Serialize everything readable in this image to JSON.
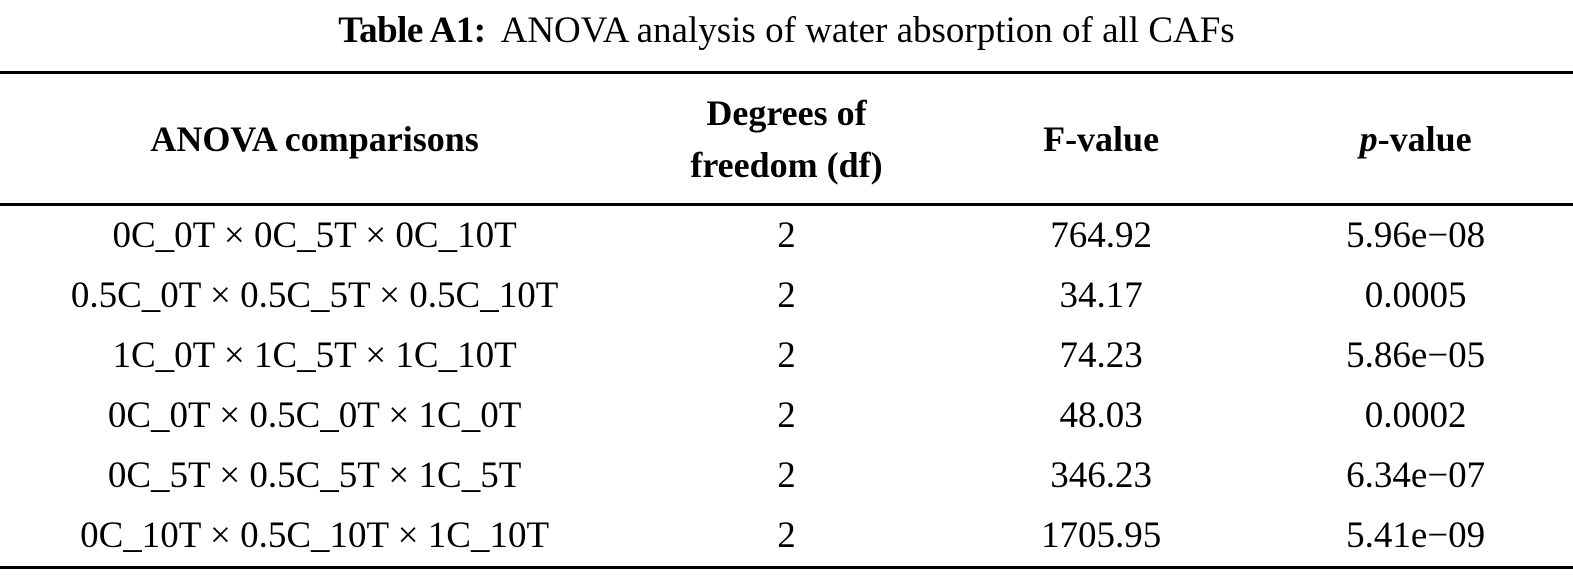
{
  "title": {
    "label": "Table A1:",
    "text": "ANOVA analysis of water absorption of all CAFs"
  },
  "table": {
    "headers": {
      "comparisons": "ANOVA comparisons",
      "df_line1": "Degrees of",
      "df_line2": "freedom (df)",
      "f_value": "F-value",
      "p_italic": "p",
      "p_rest": "-value"
    },
    "rows": [
      {
        "comparison": "0C_0T × 0C_5T × 0C_10T",
        "df": "2",
        "f_value": "764.92",
        "p_value": "5.96e−08"
      },
      {
        "comparison": "0.5C_0T × 0.5C_5T × 0.5C_10T",
        "df": "2",
        "f_value": "34.17",
        "p_value": "0.0005"
      },
      {
        "comparison": "1C_0T × 1C_5T × 1C_10T",
        "df": "2",
        "f_value": "74.23",
        "p_value": "5.86e−05"
      },
      {
        "comparison": "0C_0T × 0.5C_0T × 1C_0T",
        "df": "2",
        "f_value": "48.03",
        "p_value": "0.0002"
      },
      {
        "comparison": "0C_5T × 0.5C_5T × 1C_5T",
        "df": "2",
        "f_value": "346.23",
        "p_value": "6.34e−07"
      },
      {
        "comparison": "0C_10T × 0.5C_10T × 1C_10T",
        "df": "2",
        "f_value": "1705.95",
        "p_value": "5.41e−09"
      }
    ],
    "style": {
      "text_color": "#000000",
      "background_color": "#ffffff",
      "rule_color": "#000000"
    }
  }
}
